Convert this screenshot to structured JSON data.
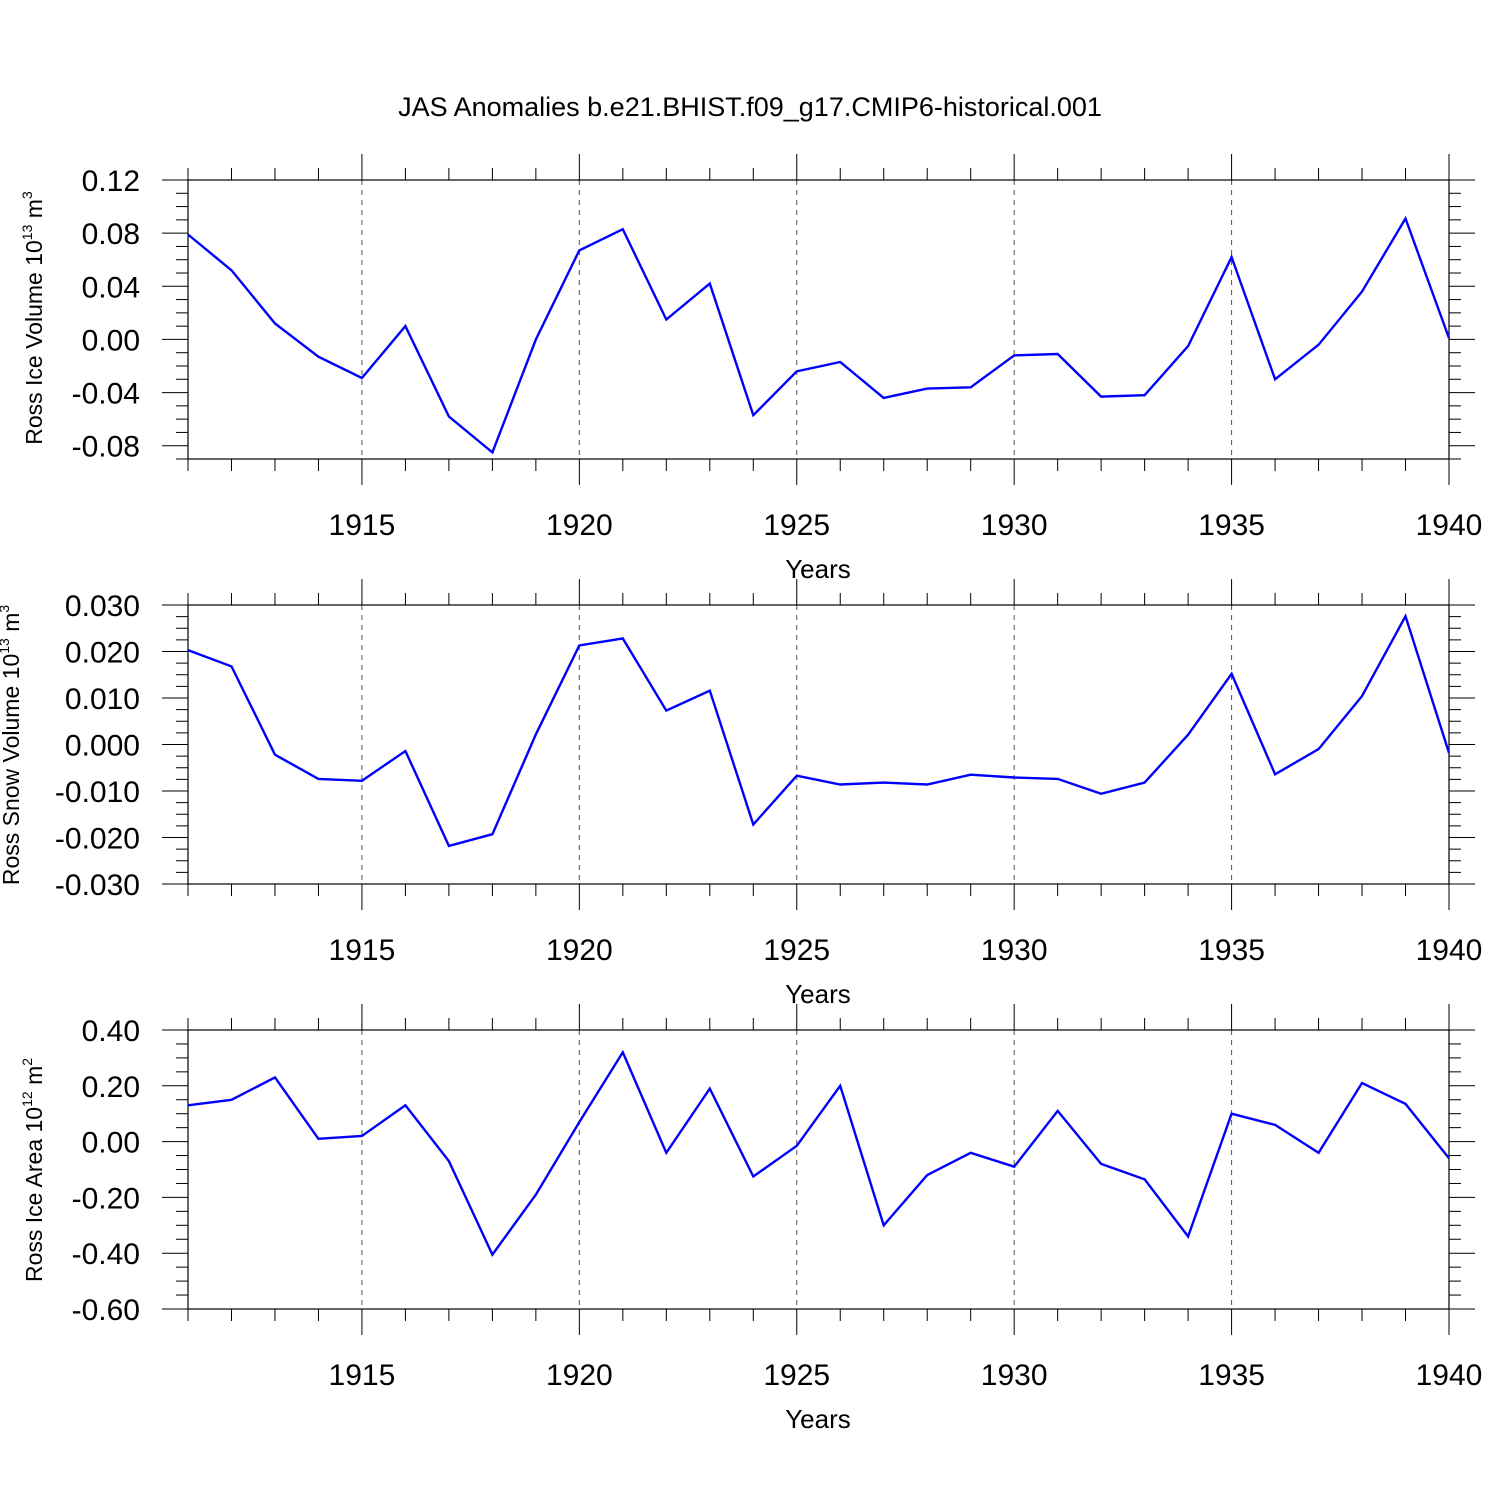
{
  "title": "JAS Anomalies b.e21.BHIST.f09_g17.CMIP6-historical.001",
  "line_color": "#0000ff",
  "chart_data": [
    {
      "type": "line",
      "title": "",
      "ylabel": {
        "text": "Ross Ice Volume 10",
        "sup": "13",
        "unit": " m",
        "unit_sup": "3"
      },
      "xlabel": "Years",
      "xlim": [
        1911,
        1940
      ],
      "ylim": [
        -0.09,
        0.12
      ],
      "yticks": [
        "0.12",
        "0.08",
        "0.04",
        "0.00",
        "-0.04",
        "-0.08"
      ],
      "ytick_values": [
        0.12,
        0.08,
        0.04,
        0.0,
        -0.04,
        -0.08
      ],
      "xticks": [
        "1915",
        "1920",
        "1925",
        "1930",
        "1935",
        "1940"
      ],
      "xtick_values": [
        1915,
        1920,
        1925,
        1930,
        1935,
        1940
      ],
      "grid": "vertical dashed at major x ticks",
      "x": [
        1911,
        1912,
        1913,
        1914,
        1915,
        1916,
        1917,
        1918,
        1919,
        1920,
        1921,
        1922,
        1923,
        1924,
        1925,
        1926,
        1927,
        1928,
        1929,
        1930,
        1931,
        1932,
        1933,
        1934,
        1935,
        1936,
        1937,
        1938,
        1939,
        1940
      ],
      "series": [
        {
          "values": [
            0.079,
            0.052,
            0.012,
            -0.013,
            -0.029,
            0.01,
            -0.058,
            -0.085,
            0.0,
            0.067,
            0.083,
            0.015,
            0.042,
            -0.057,
            -0.024,
            -0.017,
            -0.044,
            -0.037,
            -0.036,
            -0.012,
            -0.011,
            -0.043,
            -0.042,
            -0.005,
            0.062,
            -0.03,
            -0.004,
            0.036,
            0.091,
            0.001
          ]
        }
      ]
    },
    {
      "type": "line",
      "title": "",
      "ylabel": {
        "text": "Ross Snow Volume 10",
        "sup": "13",
        "unit": " m",
        "unit_sup": "3"
      },
      "xlabel": "Years",
      "xlim": [
        1911,
        1940
      ],
      "ylim": [
        -0.03,
        0.03
      ],
      "yticks": [
        "0.030",
        "0.020",
        "0.010",
        "0.000",
        "-0.010",
        "-0.020",
        "-0.030"
      ],
      "ytick_values": [
        0.03,
        0.02,
        0.01,
        0.0,
        -0.01,
        -0.02,
        -0.03
      ],
      "xticks": [
        "1915",
        "1920",
        "1925",
        "1930",
        "1935",
        "1940"
      ],
      "xtick_values": [
        1915,
        1920,
        1925,
        1930,
        1935,
        1940
      ],
      "grid": "vertical dashed at major x ticks",
      "x": [
        1911,
        1912,
        1913,
        1914,
        1915,
        1916,
        1917,
        1918,
        1919,
        1920,
        1921,
        1922,
        1923,
        1924,
        1925,
        1926,
        1927,
        1928,
        1929,
        1930,
        1931,
        1932,
        1933,
        1934,
        1935,
        1936,
        1937,
        1938,
        1939,
        1940
      ],
      "series": [
        {
          "values": [
            0.0203,
            0.0168,
            -0.0022,
            -0.0074,
            -0.0078,
            -0.0014,
            -0.0218,
            -0.0193,
            0.0022,
            0.0213,
            0.0228,
            0.0073,
            0.0116,
            -0.0172,
            -0.0067,
            -0.0086,
            -0.0082,
            -0.0086,
            -0.0065,
            -0.0071,
            -0.0074,
            -0.0106,
            -0.0082,
            0.0021,
            0.0152,
            -0.0064,
            -0.001,
            0.0104,
            0.0276,
            -0.0018
          ]
        }
      ]
    },
    {
      "type": "line",
      "title": "",
      "ylabel": {
        "text": "Ross Ice Area 10",
        "sup": "12",
        "unit": " m",
        "unit_sup": "2"
      },
      "xlabel": "Years",
      "xlim": [
        1911,
        1940
      ],
      "ylim": [
        -0.6,
        0.4
      ],
      "yticks": [
        "0.40",
        "0.20",
        "0.00",
        "-0.20",
        "-0.40",
        "-0.60"
      ],
      "ytick_values": [
        0.4,
        0.2,
        0.0,
        -0.2,
        -0.4,
        -0.6
      ],
      "xticks": [
        "1915",
        "1920",
        "1925",
        "1930",
        "1935",
        "1940"
      ],
      "xtick_values": [
        1915,
        1920,
        1925,
        1930,
        1935,
        1940
      ],
      "grid": "vertical dashed at major x ticks",
      "x": [
        1911,
        1912,
        1913,
        1914,
        1915,
        1916,
        1917,
        1918,
        1919,
        1920,
        1921,
        1922,
        1923,
        1924,
        1925,
        1926,
        1927,
        1928,
        1929,
        1930,
        1931,
        1932,
        1933,
        1934,
        1935,
        1936,
        1937,
        1938,
        1939,
        1940
      ],
      "series": [
        {
          "values": [
            0.13,
            0.15,
            0.23,
            0.01,
            0.02,
            0.13,
            -0.07,
            -0.405,
            -0.19,
            0.07,
            0.32,
            -0.04,
            0.19,
            -0.125,
            -0.015,
            0.2,
            -0.3,
            -0.12,
            -0.04,
            -0.09,
            0.11,
            -0.08,
            -0.135,
            -0.34,
            0.1,
            0.06,
            -0.04,
            0.21,
            0.135,
            -0.06
          ]
        }
      ]
    }
  ]
}
